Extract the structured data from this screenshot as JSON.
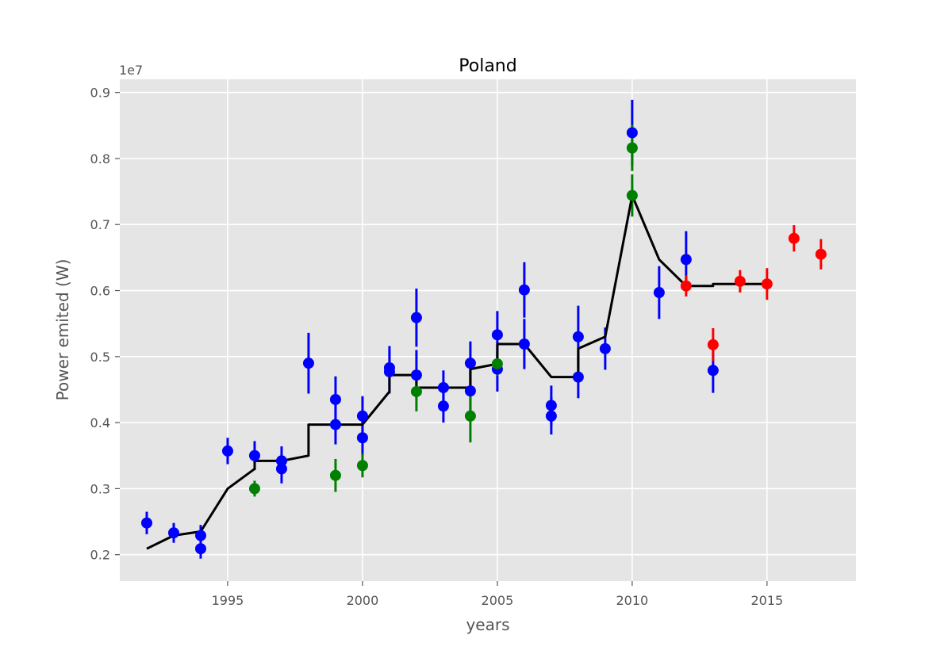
{
  "chart_data": {
    "type": "scatter",
    "title": "Poland",
    "xlabel": "years",
    "ylabel": "Power emited (W)",
    "y_offset_label": "1e7",
    "xlim": [
      1991.0,
      2018.3
    ],
    "ylim": [
      0.16,
      0.92
    ],
    "x_ticks": [
      1995,
      2000,
      2005,
      2010,
      2015
    ],
    "y_ticks": [
      0.2,
      0.3,
      0.4,
      0.5,
      0.6,
      0.7,
      0.8,
      0.9
    ],
    "y_tick_labels": [
      "0.2",
      "0.3",
      "0.4",
      "0.5",
      "0.6",
      "0.7",
      "0.8",
      "0.9"
    ],
    "grid": true,
    "colors": {
      "background": "#e5e5e5",
      "grid": "#ffffff",
      "blue": "#0000ff",
      "green": "#008000",
      "red": "#ff0000",
      "line": "#000000"
    },
    "series": [
      {
        "color": "blue",
        "points": [
          {
            "x": 1992,
            "y": 0.248,
            "err": 0.017
          },
          {
            "x": 1993,
            "y": 0.233,
            "err": 0.015
          },
          {
            "x": 1994,
            "y": 0.229,
            "err": 0.016
          },
          {
            "x": 1994,
            "y": 0.209,
            "err": 0.015
          },
          {
            "x": 1995,
            "y": 0.357,
            "err": 0.02
          },
          {
            "x": 1996,
            "y": 0.35,
            "err": 0.022
          },
          {
            "x": 1997,
            "y": 0.342,
            "err": 0.022
          },
          {
            "x": 1997,
            "y": 0.33,
            "err": 0.022
          },
          {
            "x": 1998,
            "y": 0.49,
            "err": 0.046
          },
          {
            "x": 1999,
            "y": 0.435,
            "err": 0.035
          },
          {
            "x": 1999,
            "y": 0.397,
            "err": 0.03
          },
          {
            "x": 2000,
            "y": 0.41,
            "err": 0.03
          },
          {
            "x": 2000,
            "y": 0.377,
            "err": 0.028
          },
          {
            "x": 2001,
            "y": 0.483,
            "err": 0.033
          },
          {
            "x": 2001,
            "y": 0.477,
            "err": 0.033
          },
          {
            "x": 2002,
            "y": 0.559,
            "err": 0.044
          },
          {
            "x": 2002,
            "y": 0.472,
            "err": 0.038
          },
          {
            "x": 2003,
            "y": 0.453,
            "err": 0.026
          },
          {
            "x": 2003,
            "y": 0.425,
            "err": 0.025
          },
          {
            "x": 2004,
            "y": 0.49,
            "err": 0.033
          },
          {
            "x": 2004,
            "y": 0.448,
            "err": 0.03
          },
          {
            "x": 2005,
            "y": 0.533,
            "err": 0.036
          },
          {
            "x": 2005,
            "y": 0.481,
            "err": 0.034
          },
          {
            "x": 2006,
            "y": 0.601,
            "err": 0.042
          },
          {
            "x": 2006,
            "y": 0.519,
            "err": 0.038
          },
          {
            "x": 2007,
            "y": 0.426,
            "err": 0.03
          },
          {
            "x": 2007,
            "y": 0.41,
            "err": 0.028
          },
          {
            "x": 2008,
            "y": 0.53,
            "err": 0.047
          },
          {
            "x": 2008,
            "y": 0.469,
            "err": 0.032
          },
          {
            "x": 2009,
            "y": 0.512,
            "err": 0.032
          },
          {
            "x": 2010,
            "y": 0.839,
            "err": 0.05
          },
          {
            "x": 2011,
            "y": 0.597,
            "err": 0.04
          },
          {
            "x": 2012,
            "y": 0.647,
            "err": 0.043
          },
          {
            "x": 2013,
            "y": 0.479,
            "err": 0.034
          }
        ]
      },
      {
        "color": "green",
        "points": [
          {
            "x": 1996,
            "y": 0.3,
            "err": 0.012
          },
          {
            "x": 1999,
            "y": 0.32,
            "err": 0.025
          },
          {
            "x": 2000,
            "y": 0.335,
            "err": 0.018
          },
          {
            "x": 2002,
            "y": 0.447,
            "err": 0.03
          },
          {
            "x": 2004,
            "y": 0.41,
            "err": 0.04
          },
          {
            "x": 2005,
            "y": 0.489,
            "err": 0.018
          },
          {
            "x": 2010,
            "y": 0.816,
            "err": 0.035
          },
          {
            "x": 2010,
            "y": 0.744,
            "err": 0.032
          }
        ]
      },
      {
        "color": "red",
        "points": [
          {
            "x": 2012,
            "y": 0.607,
            "err": 0.016
          },
          {
            "x": 2013,
            "y": 0.518,
            "err": 0.025
          },
          {
            "x": 2014,
            "y": 0.614,
            "err": 0.017
          },
          {
            "x": 2015,
            "y": 0.61,
            "err": 0.024
          },
          {
            "x": 2016,
            "y": 0.679,
            "err": 0.02
          },
          {
            "x": 2017,
            "y": 0.655,
            "err": 0.023
          }
        ]
      }
    ],
    "line": {
      "color": "black",
      "points": [
        [
          1992,
          0.209
        ],
        [
          1993,
          0.229
        ],
        [
          1994,
          0.235
        ],
        [
          1995,
          0.3
        ],
        [
          1996,
          0.33
        ],
        [
          1996,
          0.342
        ],
        [
          1997,
          0.342
        ],
        [
          1998,
          0.35
        ],
        [
          1998,
          0.397
        ],
        [
          2000,
          0.397
        ],
        [
          2001,
          0.447
        ],
        [
          2001,
          0.472
        ],
        [
          2002,
          0.472
        ],
        [
          2002,
          0.453
        ],
        [
          2004,
          0.453
        ],
        [
          2004,
          0.481
        ],
        [
          2005,
          0.489
        ],
        [
          2005,
          0.519
        ],
        [
          2006,
          0.519
        ],
        [
          2007,
          0.469
        ],
        [
          2008,
          0.469
        ],
        [
          2008,
          0.512
        ],
        [
          2009,
          0.53
        ],
        [
          2010,
          0.744
        ],
        [
          2011,
          0.647
        ],
        [
          2012,
          0.607
        ],
        [
          2013,
          0.607
        ],
        [
          2013,
          0.61
        ],
        [
          2015,
          0.61
        ]
      ]
    }
  }
}
